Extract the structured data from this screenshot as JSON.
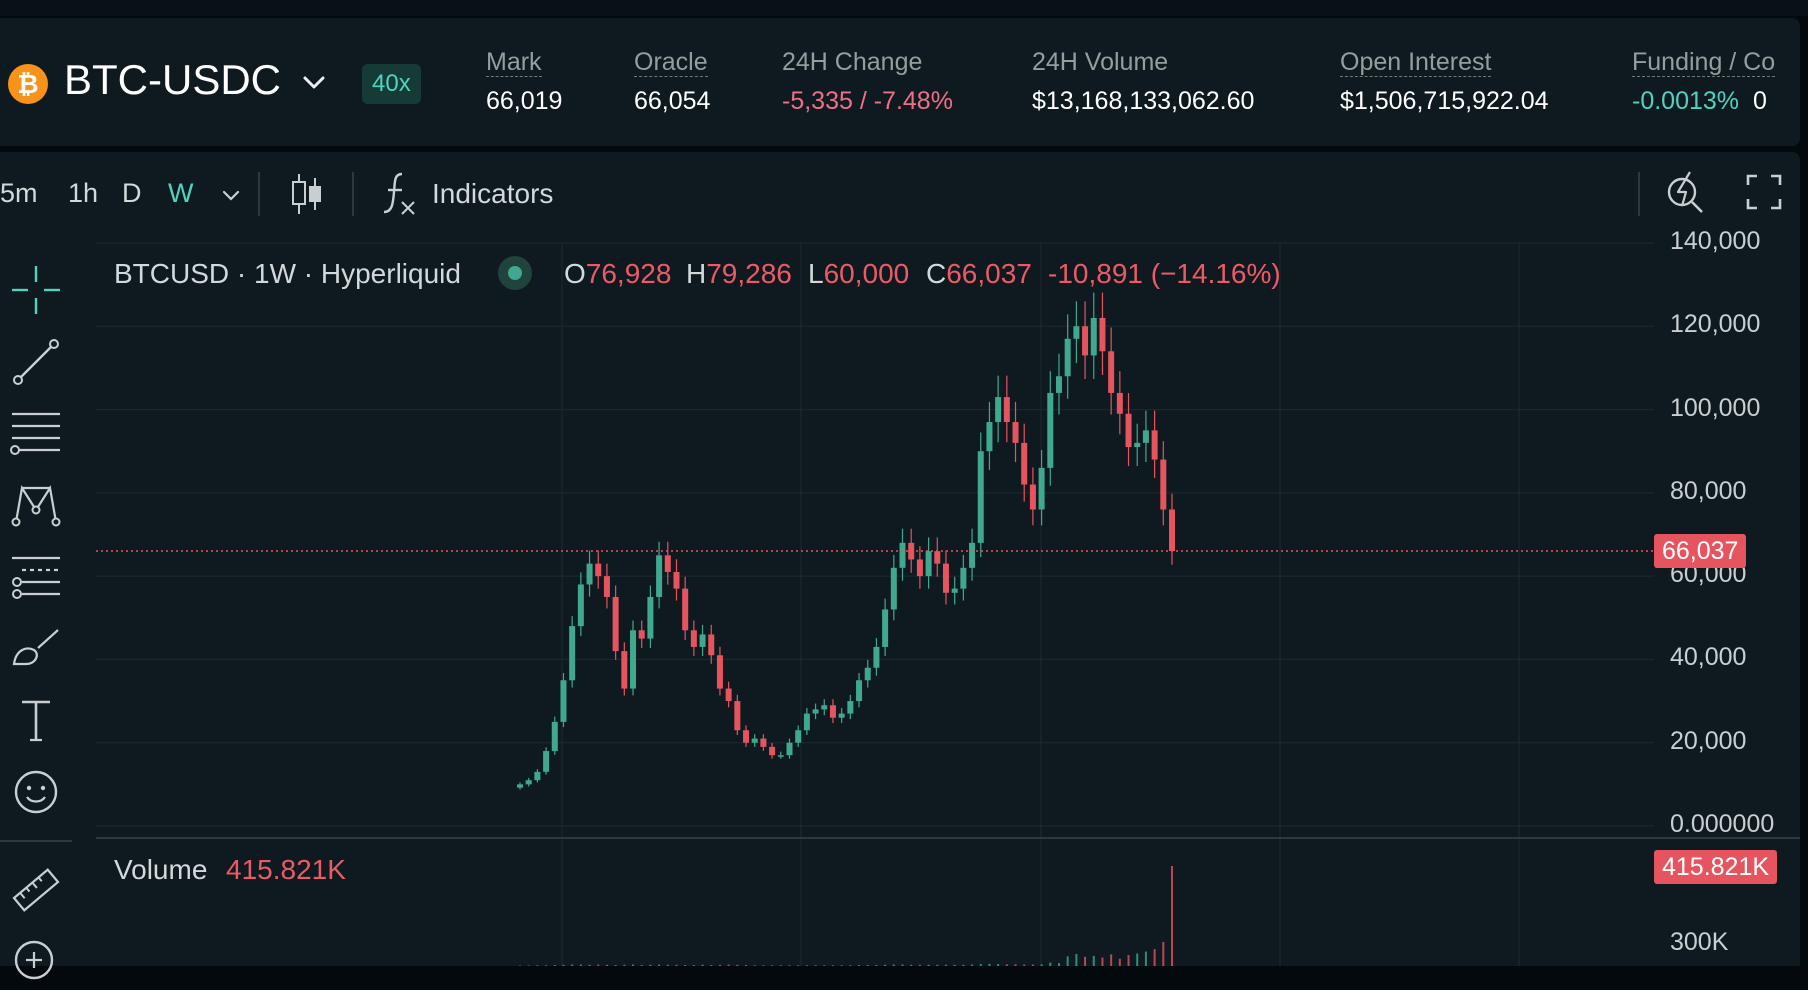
{
  "market": {
    "pair": "BTC-USDC",
    "coin_glyph": "₿",
    "leverage": "40x",
    "stats": [
      {
        "label": "Mark",
        "value": "66,019"
      },
      {
        "label": "Oracle",
        "value": "66,054"
      },
      {
        "label": "24H Change",
        "value": "-5,335 / -7.48%"
      },
      {
        "label": "24H Volume",
        "value": "$13,168,133,062.60"
      },
      {
        "label": "Open Interest",
        "value": "$1,506,715,922.04"
      },
      {
        "label": "Funding / Co",
        "value": "-0.0013%",
        "value2": "0"
      }
    ]
  },
  "toolbar": {
    "timeframes": [
      "5m",
      "1h",
      "D",
      "W"
    ],
    "active_timeframe": "W",
    "indicators_label": "Indicators"
  },
  "side_tools": [
    "crosshair-icon",
    "trend-line-icon",
    "horizontal-lines-icon",
    "pattern-icon",
    "fib-levels-icon",
    "brush-icon",
    "text-icon",
    "emoji-icon",
    "ruler-icon",
    "zoom-in-icon"
  ],
  "legend": {
    "symbol": "BTCUSD · 1W · Hyperliquid",
    "o_key": "O",
    "o_val": "76,928",
    "h_key": "H",
    "h_val": "79,286",
    "l_key": "L",
    "l_val": "60,000",
    "c_key": "C",
    "c_val": "66,037",
    "change": "-10,891 (−14.16%)"
  },
  "volume": {
    "label": "Volume",
    "value": "415.821K",
    "tag": "415.821K",
    "axis_label": "300K"
  },
  "colors": {
    "up": "#3fa88f",
    "down": "#e5545f",
    "accent": "#50d2c1",
    "panel": "#0f1a20"
  },
  "chart_data": {
    "type": "line",
    "title": "",
    "xlabel": "",
    "ylabel": "",
    "ylim": [
      0,
      140000
    ],
    "y_ticks": [
      "140,000",
      "120,000",
      "100,000",
      "80,000",
      "60,000",
      "40,000",
      "20,000",
      "0.000000"
    ],
    "last_price_label": "66,037",
    "last_price": 66037,
    "series": [
      {
        "values": [
          10000,
          11000,
          13000,
          18000,
          25000,
          35000,
          48000,
          58000,
          63000,
          60000,
          55000,
          42000,
          33000,
          47000,
          45000,
          55000,
          65000,
          61000,
          57000,
          47000,
          43000,
          46000,
          41000,
          33000,
          30000,
          23000,
          20000,
          21000,
          19000,
          17000,
          17000,
          20000,
          23000,
          27000,
          28000,
          29000,
          26000,
          27000,
          30000,
          35000,
          38000,
          43000,
          52000,
          62000,
          68000,
          64000,
          60000,
          66000,
          63000,
          56000,
          57000,
          62000,
          68000,
          90000,
          97000,
          103000,
          97000,
          92000,
          82000,
          76000,
          86000,
          104000,
          108000,
          117000,
          120000,
          113000,
          122000,
          114000,
          104000,
          99000,
          91000,
          92000,
          95000,
          88000,
          76000,
          66037
        ]
      }
    ],
    "volume_values": [
      2,
      2,
      3,
      3,
      4,
      5,
      6,
      6,
      5,
      6,
      5,
      4,
      5,
      6,
      4,
      5,
      6,
      5,
      5,
      4,
      4,
      5,
      4,
      5,
      6,
      5,
      4,
      3,
      3,
      3,
      3,
      3,
      3,
      3,
      3,
      3,
      3,
      3,
      3,
      4,
      4,
      4,
      5,
      6,
      6,
      5,
      5,
      5,
      5,
      5,
      5,
      5,
      6,
      8,
      9,
      8,
      7,
      7,
      6,
      6,
      7,
      14,
      12,
      40,
      50,
      38,
      42,
      35,
      48,
      30,
      45,
      52,
      60,
      70,
      100,
      415
    ]
  }
}
